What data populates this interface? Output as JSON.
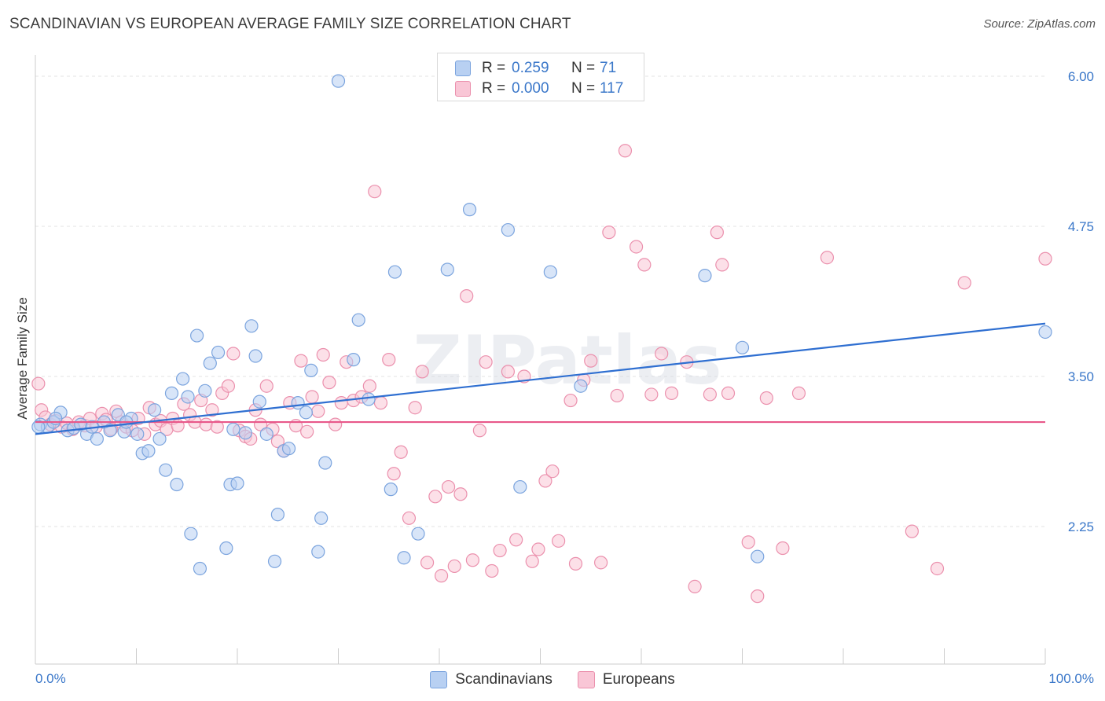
{
  "title": "SCANDINAVIAN VS EUROPEAN AVERAGE FAMILY SIZE CORRELATION CHART",
  "source": "Source: ZipAtlas.com",
  "watermark": "ZIPatlas",
  "legend_stats": [
    {
      "r_label": "R =",
      "r_value": "0.259",
      "n_label": "N =",
      "n_value": "71"
    },
    {
      "r_label": "R =",
      "r_value": "0.000",
      "n_label": "N =",
      "n_value": "117"
    }
  ],
  "colors": {
    "blue_fill": "#b8d0f2",
    "blue_stroke": "#7ba4de",
    "blue_line": "#2f6fd1",
    "pink_fill": "#f9c6d6",
    "pink_stroke": "#eb90ad",
    "pink_line": "#e8588a",
    "axis_value": "#3a77c9",
    "grid": "#e3e3e3"
  },
  "chart_data": {
    "type": "scatter",
    "title": "SCANDINAVIAN VS EUROPEAN AVERAGE FAMILY SIZE CORRELATION CHART",
    "xlabel": "",
    "ylabel": "Average Family Size",
    "x_tick_labels": [
      "0.0%",
      "100.0%"
    ],
    "y_ticks": [
      2.25,
      3.5,
      4.75,
      6.0
    ],
    "y_tick_labels": [
      "2.25",
      "3.50",
      "4.75",
      "6.00"
    ],
    "xlim": [
      0,
      100
    ],
    "ylim": [
      1.25,
      6.2
    ],
    "grid": true,
    "legend_position": "bottom",
    "series": [
      {
        "name": "Scandinavians",
        "r": 0.259,
        "n": 71,
        "trend": {
          "x": [
            0,
            100
          ],
          "y": [
            3.02,
            3.94
          ]
        },
        "points": [
          [
            0.5,
            3.1
          ],
          [
            1.2,
            3.08
          ],
          [
            1.8,
            3.12
          ],
          [
            2.5,
            3.2
          ],
          [
            3.2,
            3.05
          ],
          [
            3.8,
            3.07
          ],
          [
            4.5,
            3.1
          ],
          [
            5.1,
            3.02
          ],
          [
            5.6,
            3.08
          ],
          [
            6.1,
            2.98
          ],
          [
            6.8,
            3.12
          ],
          [
            7.4,
            3.05
          ],
          [
            8.2,
            3.18
          ],
          [
            8.8,
            3.04
          ],
          [
            9.5,
            3.15
          ],
          [
            10.1,
            3.02
          ],
          [
            10.6,
            2.86
          ],
          [
            11.2,
            2.88
          ],
          [
            11.8,
            3.22
          ],
          [
            12.3,
            2.98
          ],
          [
            12.9,
            2.72
          ],
          [
            13.5,
            3.36
          ],
          [
            14.0,
            2.6
          ],
          [
            14.6,
            3.48
          ],
          [
            15.1,
            3.33
          ],
          [
            15.4,
            2.19
          ],
          [
            16.0,
            3.84
          ],
          [
            16.3,
            1.9
          ],
          [
            16.8,
            3.38
          ],
          [
            17.3,
            3.61
          ],
          [
            18.1,
            3.7
          ],
          [
            18.9,
            2.07
          ],
          [
            19.3,
            2.6
          ],
          [
            19.6,
            3.06
          ],
          [
            20.0,
            2.61
          ],
          [
            20.8,
            3.03
          ],
          [
            21.4,
            3.92
          ],
          [
            21.8,
            3.67
          ],
          [
            22.2,
            3.29
          ],
          [
            22.9,
            3.02
          ],
          [
            23.7,
            1.96
          ],
          [
            24.0,
            2.35
          ],
          [
            24.6,
            2.88
          ],
          [
            25.1,
            2.9
          ],
          [
            26.0,
            3.28
          ],
          [
            26.8,
            3.2
          ],
          [
            27.3,
            3.55
          ],
          [
            28.0,
            2.04
          ],
          [
            28.3,
            2.32
          ],
          [
            28.7,
            2.78
          ],
          [
            30.0,
            5.96
          ],
          [
            31.5,
            3.64
          ],
          [
            32.0,
            3.97
          ],
          [
            33.0,
            3.31
          ],
          [
            35.2,
            2.56
          ],
          [
            35.6,
            4.37
          ],
          [
            36.5,
            1.99
          ],
          [
            37.9,
            2.19
          ],
          [
            40.8,
            4.39
          ],
          [
            43.0,
            4.89
          ],
          [
            46.8,
            4.72
          ],
          [
            48.0,
            2.58
          ],
          [
            51.0,
            4.37
          ],
          [
            54.0,
            3.42
          ],
          [
            66.3,
            4.34
          ],
          [
            70.0,
            3.74
          ],
          [
            71.5,
            2.0
          ],
          [
            100.0,
            3.87
          ],
          [
            0.3,
            3.08
          ],
          [
            2.0,
            3.15
          ],
          [
            9.0,
            3.12
          ]
        ]
      },
      {
        "name": "Europeans",
        "r": 0.0,
        "n": 117,
        "trend": {
          "x": [
            0,
            100
          ],
          "y": [
            3.12,
            3.12
          ]
        },
        "points": [
          [
            0.3,
            3.44
          ],
          [
            0.6,
            3.22
          ],
          [
            1.0,
            3.16
          ],
          [
            1.5,
            3.1
          ],
          [
            2.0,
            3.13
          ],
          [
            2.6,
            3.08
          ],
          [
            3.1,
            3.11
          ],
          [
            3.7,
            3.06
          ],
          [
            4.3,
            3.12
          ],
          [
            4.9,
            3.09
          ],
          [
            5.4,
            3.15
          ],
          [
            6.0,
            3.08
          ],
          [
            6.6,
            3.19
          ],
          [
            7.0,
            3.14
          ],
          [
            7.5,
            3.06
          ],
          [
            8.0,
            3.21
          ],
          [
            8.5,
            3.12
          ],
          [
            9.0,
            3.08
          ],
          [
            9.6,
            3.05
          ],
          [
            10.2,
            3.15
          ],
          [
            10.8,
            3.02
          ],
          [
            11.3,
            3.24
          ],
          [
            11.9,
            3.1
          ],
          [
            12.4,
            3.13
          ],
          [
            13.0,
            3.06
          ],
          [
            13.6,
            3.15
          ],
          [
            14.1,
            3.09
          ],
          [
            14.7,
            3.27
          ],
          [
            15.3,
            3.18
          ],
          [
            15.8,
            3.12
          ],
          [
            16.4,
            3.3
          ],
          [
            16.9,
            3.1
          ],
          [
            17.5,
            3.22
          ],
          [
            18.0,
            3.08
          ],
          [
            18.5,
            3.36
          ],
          [
            19.1,
            3.42
          ],
          [
            19.6,
            3.69
          ],
          [
            20.2,
            3.05
          ],
          [
            20.8,
            3.0
          ],
          [
            21.3,
            2.98
          ],
          [
            21.8,
            3.22
          ],
          [
            22.3,
            3.1
          ],
          [
            22.9,
            3.42
          ],
          [
            23.5,
            3.06
          ],
          [
            24.0,
            2.96
          ],
          [
            24.6,
            2.88
          ],
          [
            25.2,
            3.28
          ],
          [
            25.8,
            3.09
          ],
          [
            26.3,
            3.63
          ],
          [
            26.9,
            3.04
          ],
          [
            27.4,
            3.33
          ],
          [
            28.0,
            3.21
          ],
          [
            28.5,
            3.68
          ],
          [
            29.1,
            3.45
          ],
          [
            29.7,
            3.1
          ],
          [
            30.3,
            3.28
          ],
          [
            30.8,
            3.62
          ],
          [
            31.5,
            3.3
          ],
          [
            32.3,
            3.33
          ],
          [
            33.1,
            3.42
          ],
          [
            33.6,
            5.04
          ],
          [
            34.2,
            3.28
          ],
          [
            35.0,
            3.64
          ],
          [
            35.5,
            2.69
          ],
          [
            36.2,
            2.87
          ],
          [
            37.0,
            2.32
          ],
          [
            37.6,
            3.24
          ],
          [
            38.3,
            3.54
          ],
          [
            38.8,
            1.95
          ],
          [
            39.6,
            2.5
          ],
          [
            40.2,
            1.84
          ],
          [
            40.9,
            2.58
          ],
          [
            41.5,
            1.92
          ],
          [
            42.1,
            2.52
          ],
          [
            42.7,
            4.17
          ],
          [
            43.3,
            1.97
          ],
          [
            44.0,
            3.05
          ],
          [
            44.6,
            3.62
          ],
          [
            45.2,
            1.88
          ],
          [
            46.0,
            2.05
          ],
          [
            46.8,
            3.54
          ],
          [
            47.6,
            2.14
          ],
          [
            48.4,
            3.5
          ],
          [
            49.2,
            1.96
          ],
          [
            49.8,
            2.06
          ],
          [
            50.5,
            2.63
          ],
          [
            51.2,
            2.71
          ],
          [
            51.8,
            2.13
          ],
          [
            53.0,
            3.3
          ],
          [
            53.5,
            1.94
          ],
          [
            54.3,
            3.47
          ],
          [
            55.0,
            3.63
          ],
          [
            56.0,
            1.95
          ],
          [
            56.8,
            4.7
          ],
          [
            57.6,
            3.34
          ],
          [
            58.4,
            5.38
          ],
          [
            59.5,
            4.58
          ],
          [
            60.3,
            4.43
          ],
          [
            61.0,
            3.35
          ],
          [
            62.0,
            3.69
          ],
          [
            63.0,
            3.36
          ],
          [
            64.5,
            3.62
          ],
          [
            65.3,
            1.75
          ],
          [
            66.8,
            3.35
          ],
          [
            67.5,
            4.7
          ],
          [
            68.0,
            4.43
          ],
          [
            68.6,
            3.36
          ],
          [
            70.6,
            2.12
          ],
          [
            71.5,
            1.67
          ],
          [
            72.4,
            3.32
          ],
          [
            74.0,
            2.07
          ],
          [
            75.6,
            3.36
          ],
          [
            78.4,
            4.49
          ],
          [
            86.8,
            2.21
          ],
          [
            89.3,
            1.9
          ],
          [
            92.0,
            4.28
          ],
          [
            100.0,
            4.48
          ]
        ]
      }
    ]
  }
}
